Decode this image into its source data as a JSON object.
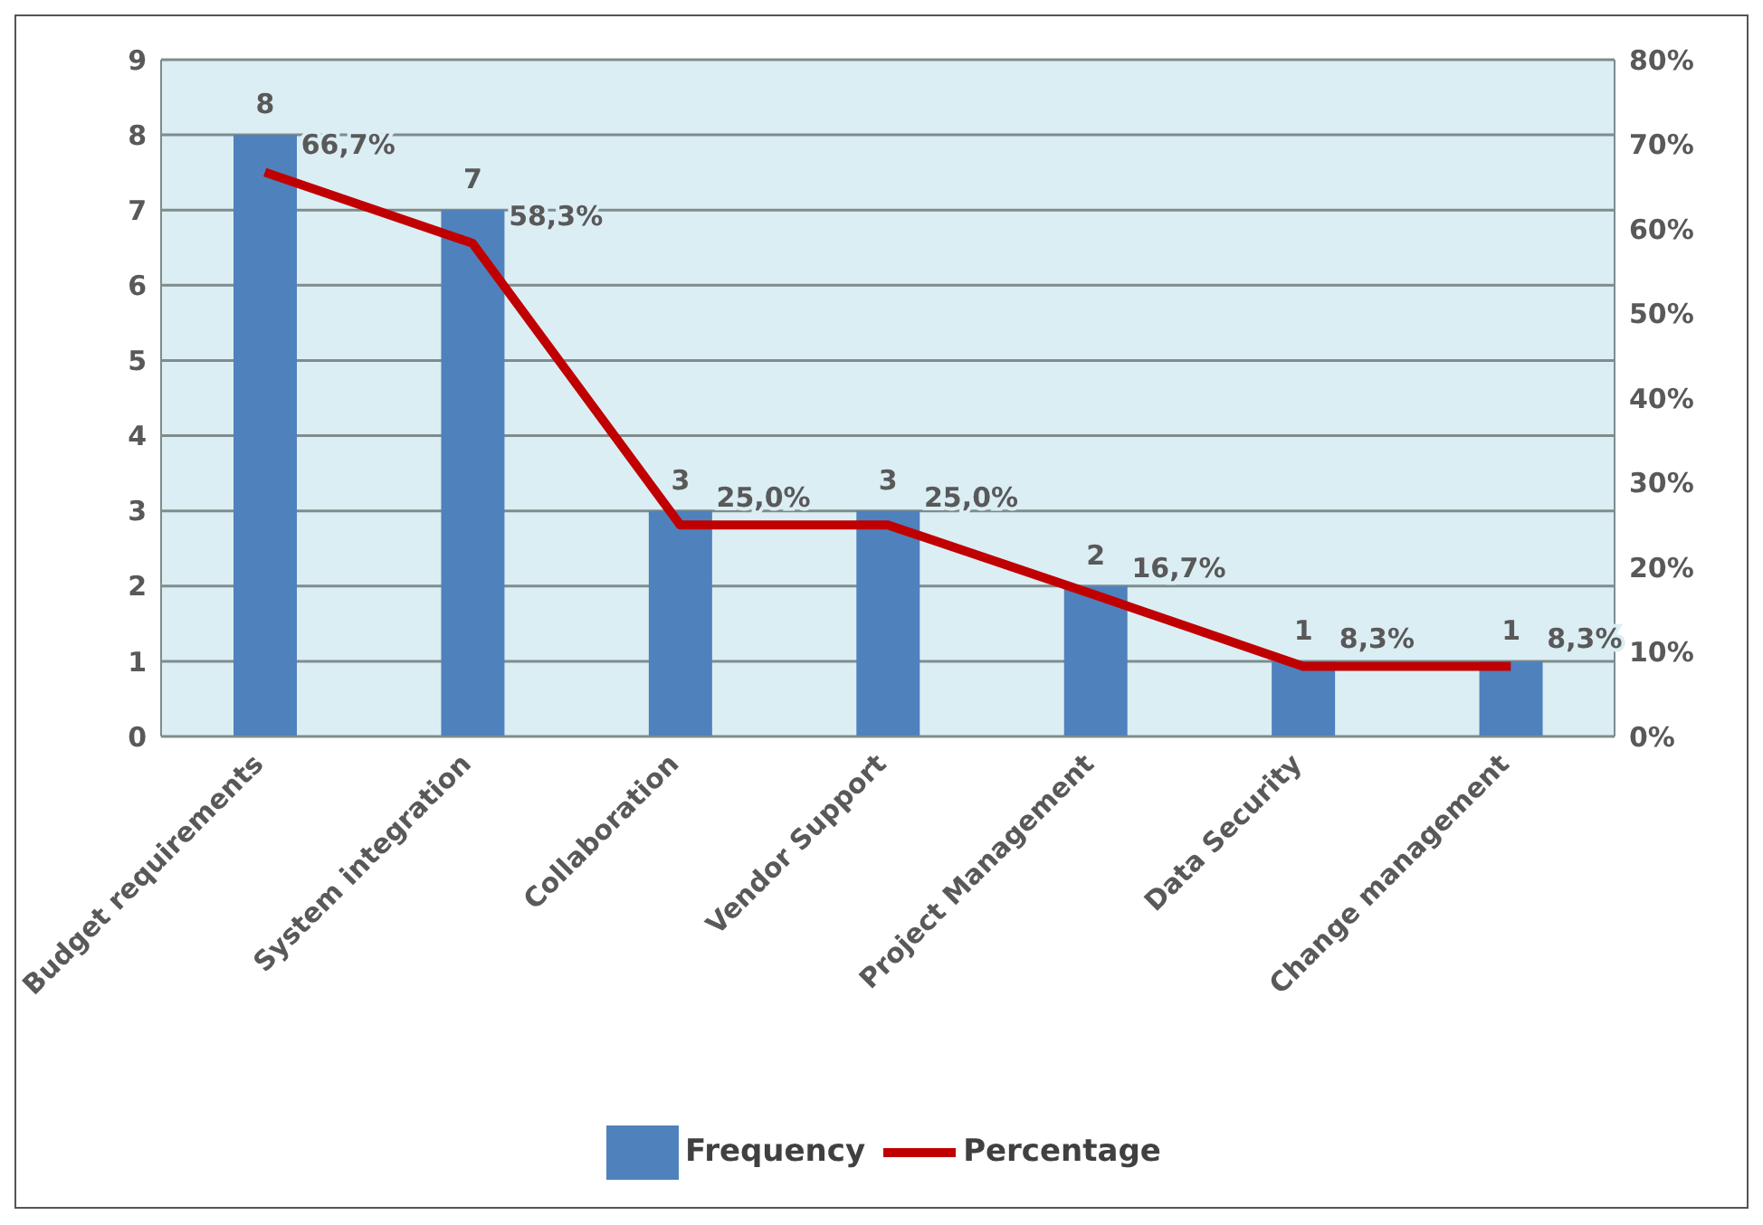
{
  "chart_data": {
    "type": "bar",
    "categories": [
      "Budget requirements",
      "System integration",
      "Collaboration",
      "Vendor Support",
      "Project Management",
      "Data Security",
      "Change management"
    ],
    "series": [
      {
        "name": "Frequency",
        "color": "#4f81bd",
        "values": [
          8,
          7,
          3,
          3,
          2,
          1,
          1
        ],
        "value_labels": [
          "8",
          "7",
          "3",
          "3",
          "2",
          "1",
          "1"
        ]
      },
      {
        "name": "Percentage",
        "type": "line",
        "axis": "y2",
        "color": "#c00000",
        "marker": "none",
        "values": [
          66.7,
          58.3,
          25.0,
          25.0,
          16.7,
          8.3,
          8.3
        ],
        "value_labels": [
          "66,7%",
          "58,3%",
          "25,0%",
          "25,0%",
          "16,7%",
          "8,3%",
          "8,3%"
        ]
      }
    ],
    "ylim": [
      0,
      9
    ],
    "yticks": [
      0,
      1,
      2,
      3,
      4,
      5,
      6,
      7,
      8,
      9
    ],
    "y2lim": [
      0,
      80
    ],
    "y2ticks": [
      {
        "value": 0,
        "label": "0%"
      },
      {
        "value": 10,
        "label": "10%"
      },
      {
        "value": 20,
        "label": "20%"
      },
      {
        "value": 30,
        "label": "30%"
      },
      {
        "value": 40,
        "label": "40%"
      },
      {
        "value": 50,
        "label": "50%"
      },
      {
        "value": 60,
        "label": "60%"
      },
      {
        "value": 70,
        "label": "70%"
      },
      {
        "value": 80,
        "label": "80%"
      }
    ],
    "grid": "y",
    "legend": "bottom"
  }
}
